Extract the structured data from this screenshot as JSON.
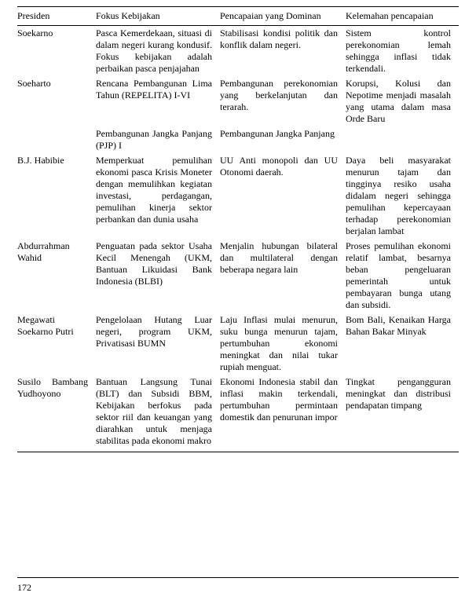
{
  "table": {
    "headers": [
      "Presiden",
      "Fokus Kebijakan",
      "Pencapaian yang Dominan",
      "Kelemahan pencapaian"
    ],
    "rows": [
      [
        "Soekarno",
        "Pasca Kemerdekaan, situasi di dalam negeri kurang kondusif. Fokus kebijakan adalah perbaikan pasca penjajahan",
        "Stabilisasi kondisi politik dan konflik dalam negeri.",
        "Sistem kontrol perekonomian lemah sehingga inflasi tidak terkendali."
      ],
      [
        "Soeharto",
        "Rencana Pembangunan Lima Tahun (REPELITA) I-VI",
        "Pembangunan perekonomian yang berkelanjutan dan terarah.",
        "Korupsi, Kolusi dan Nepotime menjadi masalah yang utama dalam masa Orde Baru"
      ],
      [
        "",
        "Pembangunan Jangka Panjang (PJP) I",
        "Pembangunan Jangka Panjang",
        ""
      ],
      [
        "B.J. Habibie",
        "Memperkuat pemulihan ekonomi pasca Krisis Moneter dengan memulihkan kegiatan investasi, perdagangan, pemulihan kinerja sektor perbankan dan dunia usaha",
        "UU Anti monopoli dan UU Otonomi daerah.",
        "Daya beli masyarakat menurun tajam dan tingginya resiko usaha didalam negeri sehingga pemulihan kepercayaan terhadap perekonomian berjalan lambat"
      ],
      [
        "Abdurrahman Wahid",
        "Penguatan pada sektor Usaha Kecil Menengah (UKM, Bantuan Likuidasi Bank Indonesia (BLBI)",
        "Menjalin hubungan bilateral dan multilateral dengan beberapa negara lain",
        "Proses pemulihan ekonomi relatif lambat, besarnya beban pengeluaran pemerintah untuk pembayaran bunga utang dan subsidi."
      ],
      [
        "Megawati Soekarno Putri",
        "Pengelolaan Hutang Luar negeri, program UKM, Privatisasi BUMN",
        "Laju Inflasi mulai menurun, suku bunga menurun tajam, pertumbuhan ekonomi meningkat dan nilai tukar rupiah menguat.",
        "Bom Bali, Kenaikan Harga Bahan Bakar Minyak"
      ],
      [
        "Susilo Bambang Yudhoyono",
        "Bantuan Langsung Tunai (BLT) dan Subsidi BBM, Kebijakan berfokus pada sektor riil dan keuangan yang diarahkan untuk menjaga stabilitas pada ekonomi makro",
        "Ekonomi Indonesia stabil dan inflasi makin terkendali, pertumbuhan permintaan domestik dan penurunan impor",
        "Tingkat pengangguran meningkat dan distribusi pendapatan timpang"
      ]
    ]
  },
  "pageNumber": "172"
}
